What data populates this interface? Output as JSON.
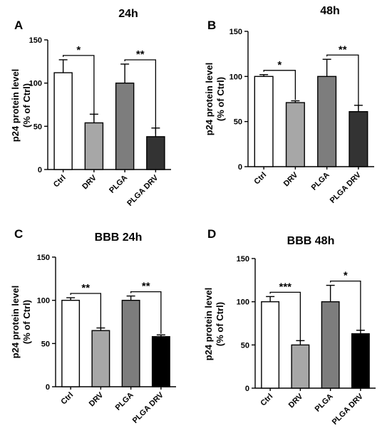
{
  "chart_data": [
    {
      "type": "bar",
      "panel": "A",
      "title": "24h",
      "ylabel_line1": "p24 protein level",
      "ylabel_line2": "(% of Ctrl)",
      "ylim": [
        0,
        150
      ],
      "yticks": [
        0,
        50,
        100,
        150
      ],
      "categories": [
        "Ctrl",
        "DRV",
        "PLGA",
        "PLGA DRV"
      ],
      "values": [
        112,
        54,
        100,
        38
      ],
      "errors": [
        15,
        10,
        22,
        10
      ],
      "colors": [
        "#ffffff",
        "#a7a7a7",
        "#7d7d7d",
        "#333333"
      ],
      "significance": [
        {
          "from": 0,
          "to": 1,
          "label": "*"
        },
        {
          "from": 2,
          "to": 3,
          "label": "**"
        }
      ]
    },
    {
      "type": "bar",
      "panel": "B",
      "title": "48h",
      "ylabel_line1": "p24 protein level",
      "ylabel_line2": "(% of Ctrl)",
      "ylim": [
        0,
        150
      ],
      "yticks": [
        0,
        50,
        100,
        150
      ],
      "categories": [
        "Ctrl",
        "DRV",
        "PLGA",
        "PLGA DRV"
      ],
      "values": [
        100,
        71,
        100,
        61
      ],
      "errors": [
        2,
        2,
        19,
        7
      ],
      "colors": [
        "#ffffff",
        "#a7a7a7",
        "#7d7d7d",
        "#333333"
      ],
      "significance": [
        {
          "from": 0,
          "to": 1,
          "label": "*"
        },
        {
          "from": 2,
          "to": 3,
          "label": "**"
        }
      ]
    },
    {
      "type": "bar",
      "panel": "C",
      "title": "BBB 24h",
      "ylabel_line1": "p24 protein level",
      "ylabel_line2": "(% of Ctrl)",
      "ylim": [
        0,
        150
      ],
      "yticks": [
        0,
        50,
        100,
        150
      ],
      "categories": [
        "Ctrl",
        "DRV",
        "PLGA",
        "PLGA DRV"
      ],
      "values": [
        100,
        65,
        100,
        58
      ],
      "errors": [
        3,
        3,
        5,
        2
      ],
      "colors": [
        "#ffffff",
        "#a7a7a7",
        "#7d7d7d",
        "#000000"
      ],
      "significance": [
        {
          "from": 0,
          "to": 1,
          "label": "**"
        },
        {
          "from": 2,
          "to": 3,
          "label": "**"
        }
      ]
    },
    {
      "type": "bar",
      "panel": "D",
      "title": "BBB 48h",
      "ylabel_line1": "p24 protein level",
      "ylabel_line2": "(% of Ctrl)",
      "ylim": [
        0,
        150
      ],
      "yticks": [
        0,
        50,
        100,
        150
      ],
      "categories": [
        "Ctrl",
        "DRV",
        "PLGA",
        "PLGA DRV"
      ],
      "values": [
        100,
        50,
        100,
        63
      ],
      "errors": [
        6,
        5,
        19,
        4
      ],
      "colors": [
        "#ffffff",
        "#a7a7a7",
        "#7d7d7d",
        "#000000"
      ],
      "significance": [
        {
          "from": 0,
          "to": 1,
          "label": "***"
        },
        {
          "from": 2,
          "to": 3,
          "label": "*"
        }
      ]
    }
  ]
}
